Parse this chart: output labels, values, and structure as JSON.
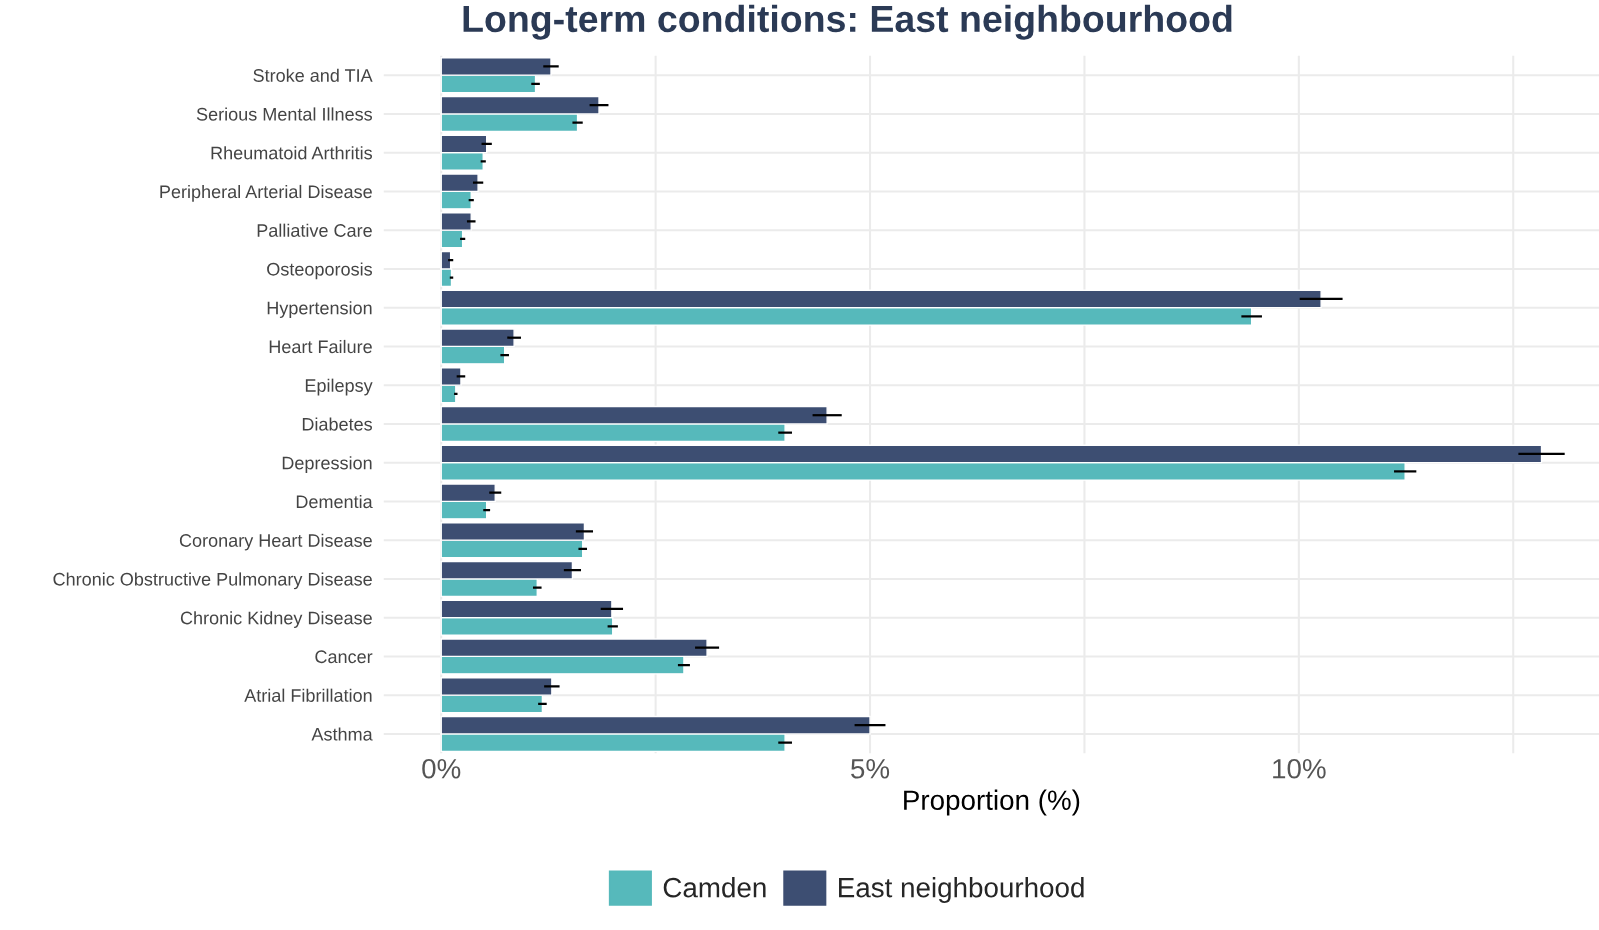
{
  "chart_data": {
    "type": "bar",
    "orientation": "horizontal",
    "title": "Long-term conditions: East neighbourhood",
    "xlabel": "Proportion (%)",
    "categories": [
      "Stroke and TIA",
      "Serious Mental Illness",
      "Rheumatoid Arthritis",
      "Peripheral Arterial Disease",
      "Palliative Care",
      "Osteoporosis",
      "Hypertension",
      "Heart Failure",
      "Epilepsy",
      "Diabetes",
      "Depression",
      "Dementia",
      "Coronary Heart Disease",
      "Chronic Obstructive Pulmonary Disease",
      "Chronic Kidney Disease",
      "Cancer",
      "Atrial Fibrillation",
      "Asthma"
    ],
    "series": [
      {
        "name": "Camden",
        "color": "#56b9bb",
        "values": [
          1.1,
          1.59,
          0.49,
          0.35,
          0.25,
          0.12,
          9.45,
          0.74,
          0.17,
          4.01,
          11.24,
          0.53,
          1.65,
          1.12,
          2.0,
          2.83,
          1.18,
          4.01
        ],
        "errors": [
          0.05,
          0.06,
          0.03,
          0.03,
          0.03,
          0.02,
          0.12,
          0.05,
          0.02,
          0.08,
          0.13,
          0.04,
          0.05,
          0.05,
          0.06,
          0.07,
          0.05,
          0.08
        ]
      },
      {
        "name": "East neighbourhood",
        "color": "#3d4e72",
        "values": [
          1.28,
          1.84,
          0.53,
          0.43,
          0.35,
          0.11,
          10.26,
          0.85,
          0.23,
          4.5,
          12.83,
          0.63,
          1.67,
          1.53,
          1.99,
          3.1,
          1.29,
          5.0
        ],
        "errors": [
          0.09,
          0.11,
          0.06,
          0.06,
          0.05,
          0.03,
          0.25,
          0.08,
          0.05,
          0.17,
          0.27,
          0.07,
          0.1,
          0.1,
          0.13,
          0.14,
          0.09,
          0.18
        ]
      }
    ],
    "xlim": [
      -0.67,
      13.5
    ],
    "xticks": [
      {
        "value": 0,
        "label": "0%"
      },
      {
        "value": 2.5,
        "label": null
      },
      {
        "value": 5,
        "label": "5%"
      },
      {
        "value": 7.5,
        "label": null
      },
      {
        "value": 10,
        "label": "10%"
      },
      {
        "value": 12.5,
        "label": null
      }
    ],
    "grid": true,
    "legend": "bottom"
  }
}
